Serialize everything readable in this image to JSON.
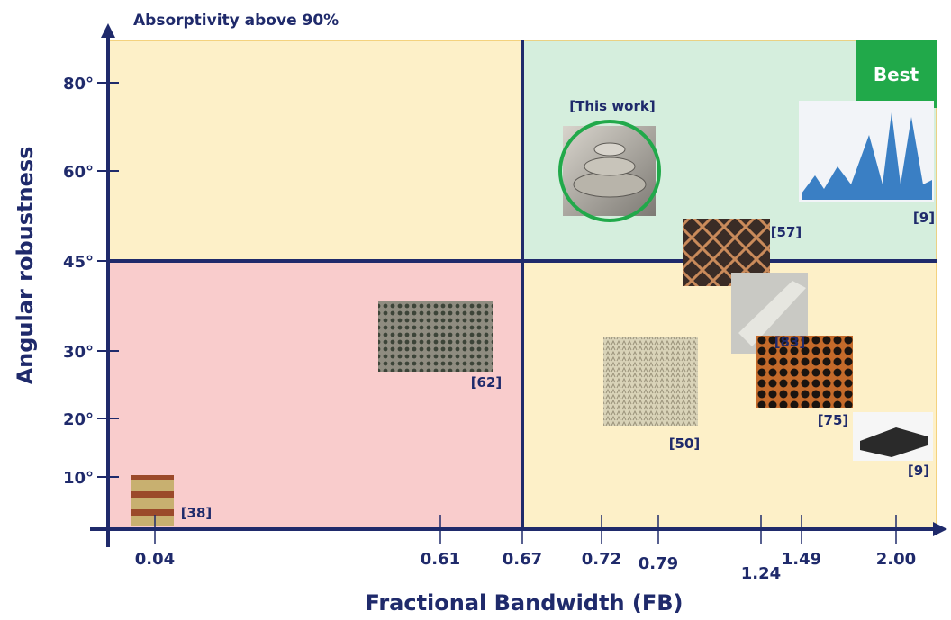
{
  "title": "Absorptivity above 90%",
  "y_axis": {
    "label": "Angular robustness",
    "ticks": [
      "80°",
      "60°",
      "45°",
      "30°",
      "20°",
      "10°"
    ]
  },
  "x_axis": {
    "label": "Fractional Bandwidth (FB)",
    "ticks": [
      "0.04",
      "0.61",
      "0.67",
      "0.72",
      "0.79",
      "1.24",
      "1.49",
      "2.00"
    ]
  },
  "badge": "Best",
  "references": [
    "[This work]",
    "[9]",
    "[57]",
    "[83]",
    "[75]",
    "[50]",
    "[62]",
    "[38]",
    "[9]"
  ]
}
